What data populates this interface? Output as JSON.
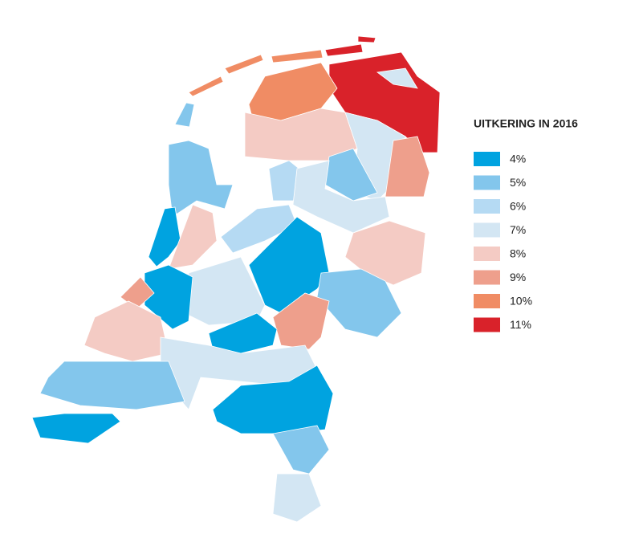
{
  "legend": {
    "title": "UITKERING IN 2016",
    "items": [
      {
        "label": "4%",
        "color": "#00a3e0"
      },
      {
        "label": "5%",
        "color": "#83c6ec"
      },
      {
        "label": "6%",
        "color": "#b5daf3"
      },
      {
        "label": "7%",
        "color": "#d3e6f3"
      },
      {
        "label": "8%",
        "color": "#f4cbc4"
      },
      {
        "label": "9%",
        "color": "#ee9f8c"
      },
      {
        "label": "10%",
        "color": "#f08c64"
      },
      {
        "label": "11%",
        "color": "#d9222a"
      }
    ]
  }
}
